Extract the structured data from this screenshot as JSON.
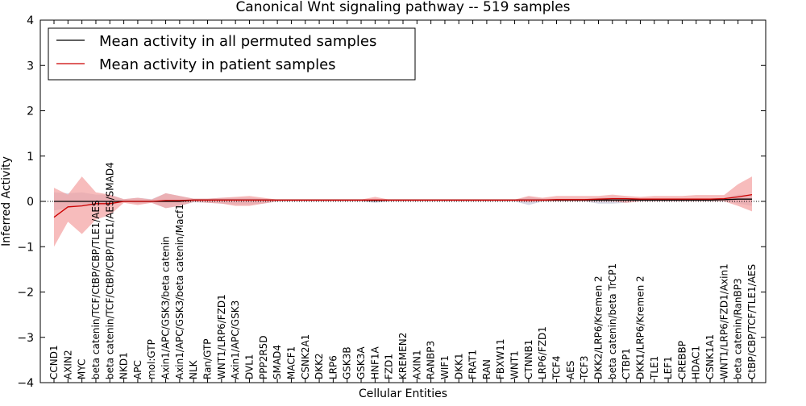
{
  "chart_data": {
    "type": "line",
    "title": "Canonical Wnt signaling pathway -- 519 samples",
    "xlabel": "Cellular Entities",
    "ylabel": "Inferred Activity",
    "ylim": [
      -4,
      4
    ],
    "yticks": [
      -4,
      -3,
      -2,
      -1,
      0,
      1,
      2,
      3,
      4
    ],
    "ytick_labels": [
      "−4",
      "−3",
      "−2",
      "−1",
      "0",
      "1",
      "2",
      "3",
      "4"
    ],
    "legend_position": "upper-left",
    "categories": [
      "CCND1",
      "AXIN2",
      "MYC",
      "beta catenin/TCF/CtBP/CBP/TLE1/AES",
      "beta catenin/TCF/CtBP/CBP/TLE1/AES/SMAD4",
      "NKD1",
      "APC",
      "mol:GTP",
      "Axin1/APC/GSK3/beta catenin",
      "Axin1/APC/GSK3/beta catenin/Macf1",
      "NLK",
      "Ran/GTP",
      "WNT1/LRP6/FZD1",
      "Axin1/APC/GSK3",
      "DVL1",
      "PPP2R5D",
      "SMAD4",
      "MACF1",
      "CSNK2A1",
      "DKK2",
      "LRP6",
      "GSK3B",
      "GSK3A",
      "HNF1A",
      "FZD1",
      "KREMEN2",
      "AXIN1",
      "RANBP3",
      "WIF1",
      "DKK1",
      "FRAT1",
      "RAN",
      "FBXW11",
      "WNT1",
      "CTNNB1",
      "LRP6/FZD1",
      "TCF4",
      "AES",
      "TCF3",
      "DKK2/LRP6/Kremen 2",
      "beta catenin/beta TrCP1",
      "CTBP1",
      "DKK1/LRP6/Kremen 2",
      "TLE1",
      "LEF1",
      "CREBBP",
      "HDAC1",
      "CSNK1A1",
      "WNT1/LRP6/FZD1/Axin1",
      "beta catenin/RanBP3",
      "CtBP/CBP/TCF/TLE1/AES"
    ],
    "series": [
      {
        "name": "Mean activity in all permuted samples",
        "color": "#000000",
        "values": [
          0,
          0,
          0,
          0,
          0,
          0,
          0,
          0,
          0,
          0,
          0.03,
          0.03,
          0.03,
          0.03,
          0.03,
          0.03,
          0.03,
          0.03,
          0.03,
          0.03,
          0.03,
          0.03,
          0.03,
          0.02,
          0.03,
          0.03,
          0.03,
          0.03,
          0.03,
          0.03,
          0.03,
          0.03,
          0.03,
          0.03,
          0.03,
          0.03,
          0.03,
          0.03,
          0.03,
          0.03,
          0.03,
          0.03,
          0.03,
          0.03,
          0.03,
          0.03,
          0.03,
          0.03,
          0.04,
          0.05,
          0.05
        ],
        "band_lower": [
          -0.2,
          -0.15,
          -0.1,
          -0.1,
          -0.1,
          0,
          -0.05,
          -0.03,
          -0.15,
          -0.1,
          -0.02,
          -0.03,
          -0.05,
          -0.07,
          -0.07,
          -0.05,
          0,
          0,
          0,
          0,
          0,
          0,
          0,
          -0.03,
          0,
          0,
          0,
          0,
          0,
          0,
          0,
          0,
          0,
          0,
          -0.08,
          0,
          0,
          0,
          0,
          -0.05,
          -0.05,
          -0.03,
          0,
          0,
          0,
          0,
          0,
          0,
          0,
          -0.05,
          -0.1
        ],
        "band_upper": [
          0.2,
          0.18,
          0.2,
          0.15,
          0.15,
          0.05,
          0.08,
          0.05,
          0.18,
          0.12,
          0.06,
          0.06,
          0.08,
          0.08,
          0.08,
          0.06,
          0.03,
          0.03,
          0.03,
          0.03,
          0.03,
          0.03,
          0.03,
          0.06,
          0.03,
          0.03,
          0.03,
          0.03,
          0.03,
          0.03,
          0.03,
          0.03,
          0.03,
          0.03,
          0.1,
          0.06,
          0.06,
          0.06,
          0.06,
          0.08,
          0.1,
          0.08,
          0.06,
          0.06,
          0.06,
          0.06,
          0.06,
          0.06,
          0.08,
          0.15,
          0.15
        ],
        "band_color": "#b8b8d0"
      },
      {
        "name": "Mean activity in patient samples",
        "color": "#cc0000",
        "values": [
          -0.35,
          -0.12,
          -0.1,
          -0.05,
          -0.05,
          0,
          0,
          0,
          0.02,
          0.02,
          0.03,
          0.03,
          0.03,
          0.03,
          0.03,
          0.03,
          0.03,
          0.03,
          0.03,
          0.03,
          0.03,
          0.03,
          0.03,
          0.03,
          0.03,
          0.03,
          0.03,
          0.03,
          0.03,
          0.03,
          0.03,
          0.03,
          0.03,
          0.03,
          0.03,
          0.03,
          0.04,
          0.04,
          0.04,
          0.05,
          0.06,
          0.06,
          0.05,
          0.05,
          0.05,
          0.05,
          0.05,
          0.05,
          0.06,
          0.1,
          0.15
        ],
        "band_lower": [
          -1.0,
          -0.45,
          -0.72,
          -0.4,
          -0.3,
          -0.03,
          -0.08,
          -0.03,
          -0.15,
          -0.1,
          -0.01,
          -0.03,
          -0.05,
          -0.1,
          -0.1,
          -0.05,
          0,
          0,
          0,
          0,
          0,
          0,
          0,
          0,
          0,
          0,
          0,
          0,
          0,
          0,
          0,
          0,
          0,
          0,
          -0.02,
          0,
          0,
          0,
          0,
          0,
          0,
          -0.03,
          0,
          0,
          0,
          0,
          0,
          0,
          0,
          -0.1,
          -0.22
        ],
        "band_upper": [
          0.3,
          0.15,
          0.55,
          0.2,
          0.15,
          0.05,
          0.08,
          0.04,
          0.18,
          0.12,
          0.06,
          0.06,
          0.08,
          0.1,
          0.12,
          0.08,
          0.04,
          0.04,
          0.04,
          0.04,
          0.04,
          0.04,
          0.04,
          0.1,
          0.04,
          0.04,
          0.04,
          0.04,
          0.04,
          0.04,
          0.04,
          0.04,
          0.04,
          0.04,
          0.12,
          0.08,
          0.12,
          0.12,
          0.12,
          0.12,
          0.15,
          0.12,
          0.1,
          0.12,
          0.12,
          0.12,
          0.14,
          0.14,
          0.14,
          0.38,
          0.55
        ],
        "band_color": "#f4a0a0"
      }
    ],
    "baseline": {
      "value": 0,
      "style": "dotted"
    }
  }
}
